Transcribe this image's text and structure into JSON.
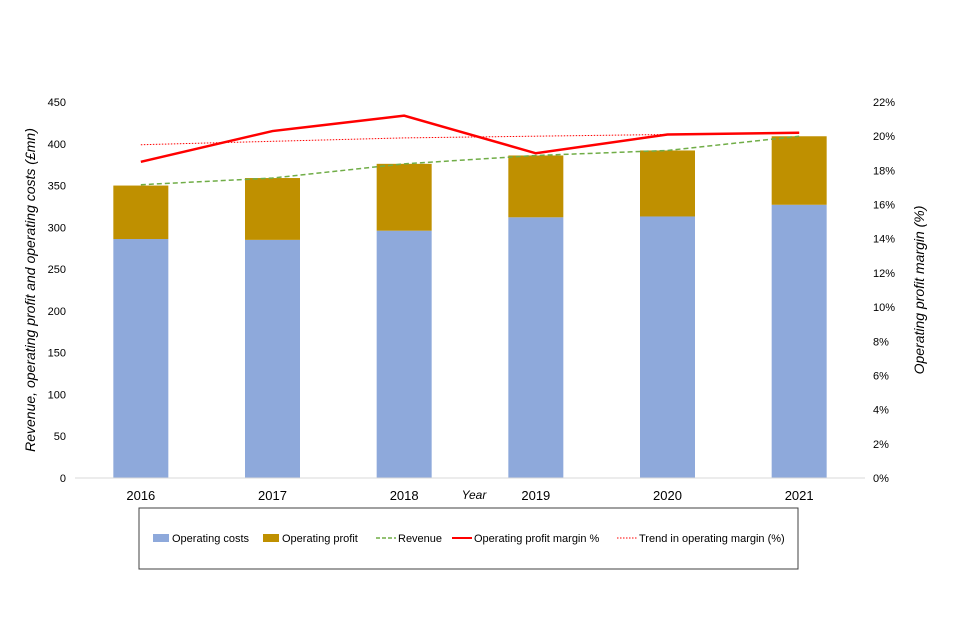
{
  "chart_data": {
    "type": "bar",
    "stacked": true,
    "categories": [
      "2016",
      "2017",
      "2018",
      "2019",
      "2020",
      "2021"
    ],
    "series": [
      {
        "name": "Operating costs",
        "kind": "bar",
        "axis": "left",
        "color": "#8EA9DB",
        "values": [
          286,
          285,
          296,
          312,
          313,
          327
        ]
      },
      {
        "name": "Operating profit",
        "kind": "bar",
        "axis": "left",
        "color": "#BF9000",
        "values": [
          64,
          74,
          80,
          74,
          79,
          82
        ]
      },
      {
        "name": "Revenue",
        "kind": "line",
        "style": "dashed",
        "axis": "left",
        "color": "#70AD47",
        "values": [
          351,
          359,
          376,
          386,
          392,
          409
        ]
      },
      {
        "name": "Operating profit margin %",
        "kind": "line",
        "style": "solid",
        "axis": "right",
        "color": "#FF0000",
        "values": [
          18.5,
          20.3,
          21.2,
          19.0,
          20.1,
          20.2
        ]
      },
      {
        "name": "Trend in operating margin (%)",
        "kind": "line",
        "style": "dotted",
        "axis": "right",
        "color": "#FF0000",
        "values": [
          19.5,
          19.7,
          19.9,
          20.0,
          20.1,
          20.2
        ]
      }
    ],
    "xlabel": "Year",
    "ylabel": "Revenue, operating profit and operating costs (£mn)",
    "y2label": "Operating profit margin (%)",
    "ylim": [
      0,
      450
    ],
    "yticks": [
      "0",
      "50",
      "100",
      "150",
      "200",
      "250",
      "300",
      "350",
      "400",
      "450"
    ],
    "y2lim": [
      0,
      22
    ],
    "y2ticks": [
      "0%",
      "2%",
      "4%",
      "6%",
      "8%",
      "10%",
      "12%",
      "14%",
      "16%",
      "18%",
      "20%",
      "22%"
    ],
    "legend_position": "bottom",
    "grid": false
  }
}
